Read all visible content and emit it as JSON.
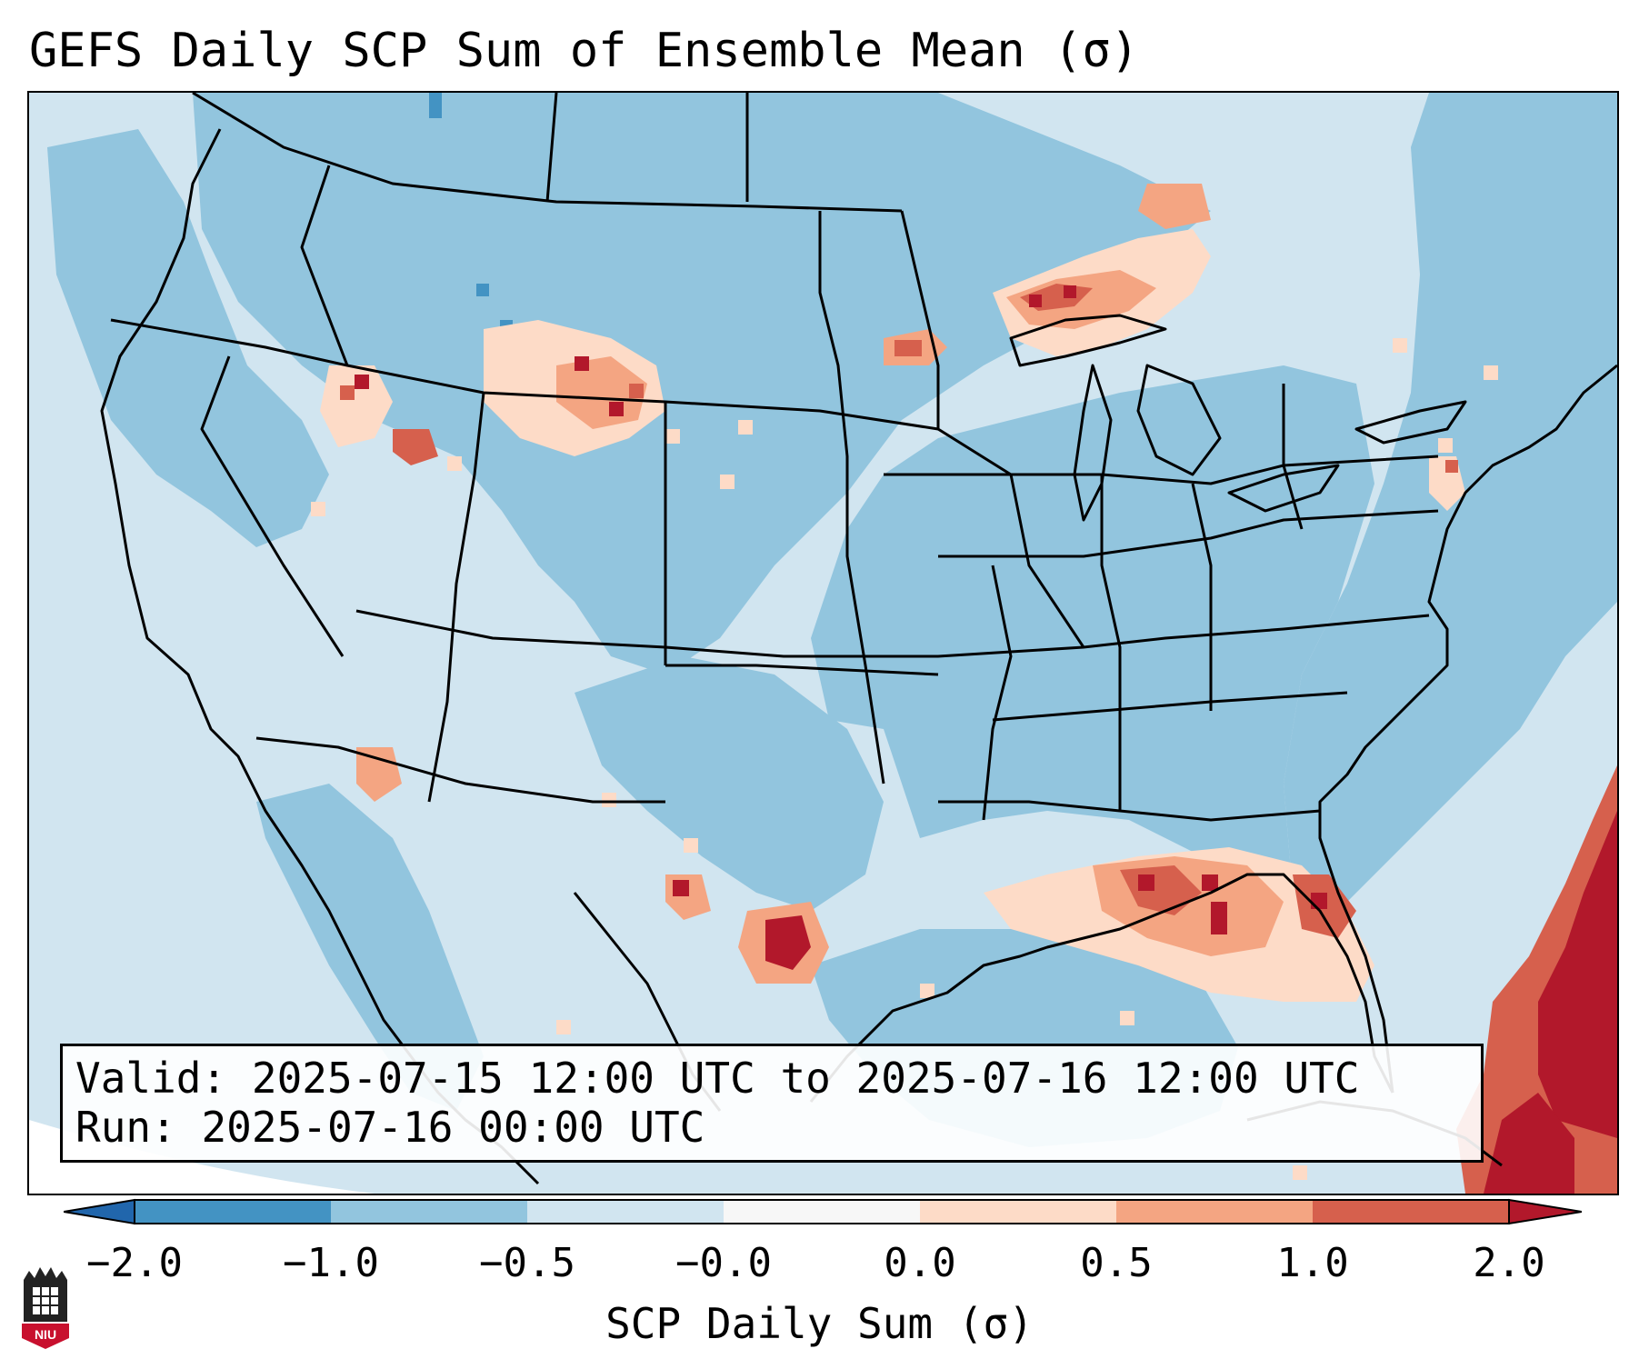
{
  "title": "GEFS Daily SCP Sum of Ensemble Mean (σ)",
  "info": {
    "valid_label": "Valid:",
    "valid_value": "2025-07-15 12:00 UTC to 2025-07-16 12:00 UTC",
    "run_label": "Run:",
    "run_value": "2025-07-16 00:00 UTC"
  },
  "colorbar": {
    "label": "SCP Daily Sum (σ)",
    "ticks": [
      "−2.0",
      "−1.0",
      "−0.5",
      "−0.0",
      "0.0",
      "0.5",
      "1.0",
      "2.0"
    ],
    "bins": [
      {
        "from": "<-2.0",
        "color": "#2166ac"
      },
      {
        "from": "-2.0",
        "to": "-1.0",
        "color": "#4393c3"
      },
      {
        "from": "-1.0",
        "to": "-0.5",
        "color": "#92c5de"
      },
      {
        "from": "-0.5",
        "to": "-0.0",
        "color": "#d1e5f0"
      },
      {
        "from": "-0.0",
        "to": "0.0",
        "color": "#f7f7f7"
      },
      {
        "from": "0.0",
        "to": "0.5",
        "color": "#fddbc7"
      },
      {
        "from": "0.5",
        "to": "1.0",
        "color": "#f4a582"
      },
      {
        "from": "1.0",
        "to": "2.0",
        "color": "#d6604d"
      },
      {
        "from": ">2.0",
        "color": "#b2182b"
      }
    ]
  },
  "logo": {
    "text": "NIU"
  },
  "map": {
    "region": "Contiguous United States",
    "colors": {
      "neutral": "#d1e5f0",
      "below": "#92c5de",
      "far_below": "#4393c3",
      "above_light": "#fddbc7",
      "above": "#f4a582",
      "above_strong": "#d6604d",
      "above_max": "#b2182b"
    }
  }
}
